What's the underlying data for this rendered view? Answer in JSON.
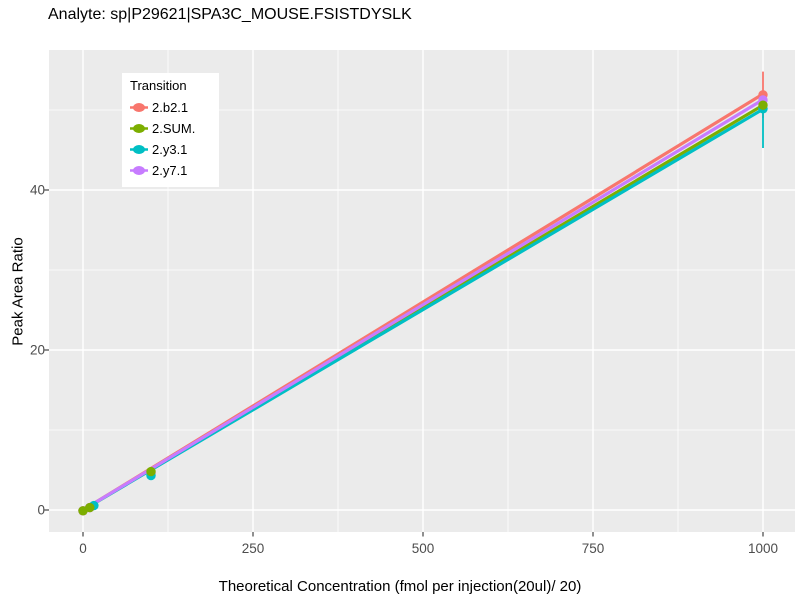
{
  "title": "Analyte: sp|P29621|SPA3C_MOUSE.FSISTDYSLK",
  "x_axis": {
    "title": "Theoretical Concentration (fmol per injection(20ul)/ 20)",
    "major_ticks": [
      0,
      250,
      500,
      750,
      1000
    ],
    "minor_ticks": [
      125,
      375,
      625,
      875
    ]
  },
  "y_axis": {
    "title": "Peak Area Ratio",
    "major_ticks": [
      0,
      20,
      40
    ],
    "minor_ticks": [
      10,
      30,
      50
    ]
  },
  "legend": {
    "title": "Transition",
    "items": [
      {
        "label": "2.b2.1",
        "color": "#F8766D"
      },
      {
        "label": "2.SUM.",
        "color": "#7CAE00"
      },
      {
        "label": "2.y3.1",
        "color": "#00BFC4"
      },
      {
        "label": "2.y7.1",
        "color": "#C77CFF"
      }
    ]
  },
  "colors": {
    "panel_bg": "#EBEBEB",
    "grid": "#FFFFFF",
    "tick_text": "#4D4D4D",
    "tick_mark": "#333333",
    "title_text": "#000000",
    "legend_bg": "#FFFFFF"
  },
  "chart_data": {
    "type": "line",
    "title": "Analyte: sp|P29621|SPA3C_MOUSE.FSISTDYSLK",
    "xlabel": "Theoretical Concentration (fmol per injection(20ul)/ 20)",
    "ylabel": "Peak Area Ratio",
    "xlim": [
      -50,
      1047
    ],
    "ylim": [
      -2.8,
      57.5
    ],
    "grid": "white major+minor on gray panel",
    "legend_title": "Transition",
    "legend_position": "inside-top-left",
    "series": [
      {
        "name": "2.b2.1",
        "color": "#F8766D",
        "line": [
          [
            0,
            0
          ],
          [
            1000,
            52.0
          ]
        ],
        "points": [
          [
            0,
            -0.1
          ],
          [
            10,
            0.3
          ],
          [
            100,
            4.7
          ],
          [
            1000,
            51.9
          ]
        ],
        "errorbar": {
          "x": 1000,
          "ymin": 49.0,
          "ymax": 54.8
        }
      },
      {
        "name": "2.SUM.",
        "color": "#7CAE00",
        "line": [
          [
            0,
            0
          ],
          [
            1000,
            50.6
          ]
        ],
        "points": [
          [
            0,
            -0.1
          ],
          [
            10,
            0.3
          ],
          [
            100,
            4.8
          ],
          [
            1000,
            50.6
          ]
        ],
        "errorbar": null
      },
      {
        "name": "2.y3.1",
        "color": "#00BFC4",
        "line": [
          [
            0,
            0
          ],
          [
            1000,
            50.1
          ]
        ],
        "points": [
          [
            16,
            0.55
          ],
          [
            100,
            4.3
          ],
          [
            1000,
            50.15
          ]
        ],
        "errorbar": {
          "x": 1000,
          "ymin": 45.25,
          "ymax": 52.0
        }
      },
      {
        "name": "2.y7.1",
        "color": "#C77CFF",
        "line": [
          [
            0,
            0
          ],
          [
            1000,
            51.3
          ]
        ],
        "points": [
          [
            0,
            -0.1
          ],
          [
            10,
            0.3
          ],
          [
            100,
            4.6
          ],
          [
            1000,
            51.25
          ]
        ],
        "errorbar": null
      }
    ],
    "draw_order": {
      "lines": [
        "2.b2.1",
        "2.SUM.",
        "2.y3.1",
        "2.y7.1"
      ],
      "points": [
        "2.b2.1",
        "2.y7.1",
        "2.y3.1",
        "2.SUM."
      ]
    }
  }
}
